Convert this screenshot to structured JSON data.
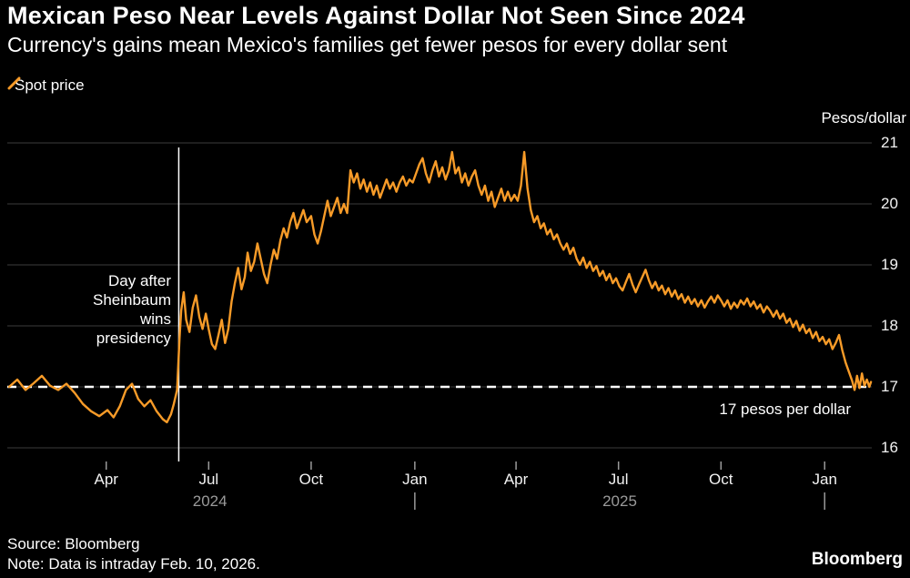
{
  "header": {
    "title": "Mexican Peso Near Levels Against Dollar Not Seen Since 2024",
    "subtitle": "Currency's gains mean Mexico's families get fewer pesos for every dollar sent"
  },
  "legend": {
    "label": "Spot price"
  },
  "axis": {
    "unit_label": "Pesos/dollar",
    "y_ticks": [
      21,
      20,
      19,
      18,
      17,
      16
    ],
    "x_ticks": [
      {
        "label": "Apr",
        "t": 2024.247
      },
      {
        "label": "Jul",
        "t": 2024.497
      },
      {
        "label": "Oct",
        "t": 2024.747
      },
      {
        "label": "Jan",
        "t": 2025.0
      },
      {
        "label": "Apr",
        "t": 2025.247
      },
      {
        "label": "Jul",
        "t": 2025.497
      },
      {
        "label": "Oct",
        "t": 2025.747
      },
      {
        "label": "Jan",
        "t": 2026.0
      }
    ],
    "year_labels": [
      {
        "label": "2024",
        "t": 2024.5
      },
      {
        "label": "2025",
        "t": 2025.5
      }
    ],
    "year_dividers": [
      2025.0,
      2026.0
    ]
  },
  "annotations": {
    "election": {
      "lines": [
        "Day after",
        "Sheinbaum",
        "wins",
        "presidency"
      ],
      "t": 2024.424
    },
    "threshold": {
      "label": "17 pesos per dollar",
      "value": 17
    }
  },
  "footer": {
    "source": "Source: Bloomberg",
    "note": "Note: Data is intraday Feb. 10, 2026.",
    "brand": "Bloomberg"
  },
  "colors": {
    "line": "#F79B28",
    "grid": "#3d3d3d",
    "threshold": "#ffffff",
    "event_line": "#ffffff",
    "background": "#000000"
  },
  "chart_data": {
    "type": "line",
    "title": "Mexican Peso Near Levels Against Dollar Not Seen Since 2024",
    "xlabel": "",
    "ylabel": "Pesos/dollar",
    "x_range": [
      2024.01,
      2026.115
    ],
    "ylim": [
      15.8,
      21.2
    ],
    "grid": "horizontal",
    "legend_position": "top-left",
    "series": [
      {
        "name": "Spot price",
        "color": "#F79B28",
        "points": [
          [
            2024.01,
            17.0
          ],
          [
            2024.03,
            17.12
          ],
          [
            2024.05,
            16.95
          ],
          [
            2024.07,
            17.06
          ],
          [
            2024.09,
            17.18
          ],
          [
            2024.11,
            17.02
          ],
          [
            2024.13,
            16.95
          ],
          [
            2024.15,
            17.05
          ],
          [
            2024.17,
            16.9
          ],
          [
            2024.19,
            16.72
          ],
          [
            2024.21,
            16.6
          ],
          [
            2024.23,
            16.52
          ],
          [
            2024.25,
            16.62
          ],
          [
            2024.265,
            16.5
          ],
          [
            2024.28,
            16.68
          ],
          [
            2024.295,
            16.95
          ],
          [
            2024.31,
            17.05
          ],
          [
            2024.325,
            16.8
          ],
          [
            2024.34,
            16.68
          ],
          [
            2024.355,
            16.78
          ],
          [
            2024.37,
            16.6
          ],
          [
            2024.385,
            16.47
          ],
          [
            2024.395,
            16.42
          ],
          [
            2024.405,
            16.55
          ],
          [
            2024.412,
            16.72
          ],
          [
            2024.42,
            16.95
          ],
          [
            2024.426,
            17.8
          ],
          [
            2024.43,
            18.25
          ],
          [
            2024.436,
            18.55
          ],
          [
            2024.442,
            18.1
          ],
          [
            2024.45,
            17.9
          ],
          [
            2024.458,
            18.3
          ],
          [
            2024.466,
            18.5
          ],
          [
            2024.474,
            18.15
          ],
          [
            2024.482,
            17.95
          ],
          [
            2024.49,
            18.2
          ],
          [
            2024.497,
            17.95
          ],
          [
            2024.505,
            17.7
          ],
          [
            2024.513,
            17.62
          ],
          [
            2024.521,
            17.85
          ],
          [
            2024.529,
            18.1
          ],
          [
            2024.537,
            17.72
          ],
          [
            2024.545,
            17.95
          ],
          [
            2024.553,
            18.4
          ],
          [
            2024.561,
            18.7
          ],
          [
            2024.569,
            18.95
          ],
          [
            2024.577,
            18.6
          ],
          [
            2024.585,
            18.8
          ],
          [
            2024.592,
            19.2
          ],
          [
            2024.6,
            18.9
          ],
          [
            2024.608,
            19.05
          ],
          [
            2024.616,
            19.35
          ],
          [
            2024.624,
            19.1
          ],
          [
            2024.632,
            18.85
          ],
          [
            2024.64,
            18.7
          ],
          [
            2024.648,
            19.0
          ],
          [
            2024.656,
            19.25
          ],
          [
            2024.664,
            19.1
          ],
          [
            2024.672,
            19.4
          ],
          [
            2024.68,
            19.6
          ],
          [
            2024.688,
            19.45
          ],
          [
            2024.696,
            19.7
          ],
          [
            2024.704,
            19.85
          ],
          [
            2024.712,
            19.6
          ],
          [
            2024.72,
            19.75
          ],
          [
            2024.728,
            19.9
          ],
          [
            2024.736,
            19.7
          ],
          [
            2024.747,
            19.8
          ],
          [
            2024.755,
            19.5
          ],
          [
            2024.763,
            19.35
          ],
          [
            2024.771,
            19.55
          ],
          [
            2024.779,
            19.8
          ],
          [
            2024.787,
            20.05
          ],
          [
            2024.795,
            19.8
          ],
          [
            2024.803,
            19.95
          ],
          [
            2024.811,
            20.1
          ],
          [
            2024.819,
            19.85
          ],
          [
            2024.827,
            20.0
          ],
          [
            2024.835,
            19.85
          ],
          [
            2024.843,
            20.55
          ],
          [
            2024.851,
            20.35
          ],
          [
            2024.859,
            20.5
          ],
          [
            2024.867,
            20.25
          ],
          [
            2024.875,
            20.4
          ],
          [
            2024.883,
            20.2
          ],
          [
            2024.891,
            20.35
          ],
          [
            2024.899,
            20.15
          ],
          [
            2024.907,
            20.3
          ],
          [
            2024.915,
            20.1
          ],
          [
            2024.923,
            20.25
          ],
          [
            2024.931,
            20.4
          ],
          [
            2024.939,
            20.25
          ],
          [
            2024.947,
            20.35
          ],
          [
            2024.955,
            20.2
          ],
          [
            2024.963,
            20.35
          ],
          [
            2024.971,
            20.45
          ],
          [
            2024.979,
            20.3
          ],
          [
            2024.987,
            20.4
          ],
          [
            2024.995,
            20.35
          ],
          [
            2025.003,
            20.5
          ],
          [
            2025.011,
            20.65
          ],
          [
            2025.019,
            20.75
          ],
          [
            2025.027,
            20.5
          ],
          [
            2025.035,
            20.35
          ],
          [
            2025.043,
            20.55
          ],
          [
            2025.051,
            20.7
          ],
          [
            2025.059,
            20.45
          ],
          [
            2025.067,
            20.6
          ],
          [
            2025.075,
            20.4
          ],
          [
            2025.083,
            20.55
          ],
          [
            2025.091,
            20.85
          ],
          [
            2025.099,
            20.5
          ],
          [
            2025.107,
            20.6
          ],
          [
            2025.115,
            20.35
          ],
          [
            2025.123,
            20.5
          ],
          [
            2025.131,
            20.3
          ],
          [
            2025.139,
            20.45
          ],
          [
            2025.147,
            20.55
          ],
          [
            2025.155,
            20.3
          ],
          [
            2025.163,
            20.15
          ],
          [
            2025.171,
            20.3
          ],
          [
            2025.179,
            20.05
          ],
          [
            2025.187,
            20.2
          ],
          [
            2025.195,
            19.95
          ],
          [
            2025.203,
            20.1
          ],
          [
            2025.211,
            20.25
          ],
          [
            2025.219,
            20.05
          ],
          [
            2025.227,
            20.2
          ],
          [
            2025.235,
            20.05
          ],
          [
            2025.243,
            20.15
          ],
          [
            2025.251,
            20.05
          ],
          [
            2025.259,
            20.3
          ],
          [
            2025.267,
            20.85
          ],
          [
            2025.275,
            20.25
          ],
          [
            2025.283,
            19.9
          ],
          [
            2025.291,
            19.7
          ],
          [
            2025.299,
            19.8
          ],
          [
            2025.307,
            19.6
          ],
          [
            2025.315,
            19.68
          ],
          [
            2025.323,
            19.5
          ],
          [
            2025.331,
            19.58
          ],
          [
            2025.339,
            19.42
          ],
          [
            2025.347,
            19.5
          ],
          [
            2025.355,
            19.35
          ],
          [
            2025.363,
            19.25
          ],
          [
            2025.371,
            19.35
          ],
          [
            2025.379,
            19.18
          ],
          [
            2025.387,
            19.28
          ],
          [
            2025.395,
            19.1
          ],
          [
            2025.403,
            19.0
          ],
          [
            2025.411,
            19.12
          ],
          [
            2025.419,
            18.95
          ],
          [
            2025.427,
            19.05
          ],
          [
            2025.435,
            18.9
          ],
          [
            2025.443,
            18.98
          ],
          [
            2025.451,
            18.82
          ],
          [
            2025.459,
            18.9
          ],
          [
            2025.467,
            18.75
          ],
          [
            2025.475,
            18.85
          ],
          [
            2025.483,
            18.7
          ],
          [
            2025.491,
            18.78
          ],
          [
            2025.499,
            18.65
          ],
          [
            2025.507,
            18.58
          ],
          [
            2025.515,
            18.72
          ],
          [
            2025.523,
            18.85
          ],
          [
            2025.531,
            18.68
          ],
          [
            2025.539,
            18.55
          ],
          [
            2025.547,
            18.68
          ],
          [
            2025.555,
            18.8
          ],
          [
            2025.563,
            18.92
          ],
          [
            2025.571,
            18.75
          ],
          [
            2025.579,
            18.62
          ],
          [
            2025.587,
            18.72
          ],
          [
            2025.595,
            18.58
          ],
          [
            2025.603,
            18.66
          ],
          [
            2025.611,
            18.52
          ],
          [
            2025.619,
            18.62
          ],
          [
            2025.627,
            18.48
          ],
          [
            2025.635,
            18.58
          ],
          [
            2025.643,
            18.44
          ],
          [
            2025.651,
            18.52
          ],
          [
            2025.659,
            18.38
          ],
          [
            2025.667,
            18.48
          ],
          [
            2025.675,
            18.36
          ],
          [
            2025.683,
            18.44
          ],
          [
            2025.691,
            18.32
          ],
          [
            2025.699,
            18.42
          ],
          [
            2025.707,
            18.3
          ],
          [
            2025.715,
            18.4
          ],
          [
            2025.723,
            18.48
          ],
          [
            2025.731,
            18.38
          ],
          [
            2025.739,
            18.5
          ],
          [
            2025.747,
            18.42
          ],
          [
            2025.755,
            18.32
          ],
          [
            2025.763,
            18.42
          ],
          [
            2025.771,
            18.28
          ],
          [
            2025.779,
            18.38
          ],
          [
            2025.787,
            18.3
          ],
          [
            2025.795,
            18.42
          ],
          [
            2025.803,
            18.35
          ],
          [
            2025.811,
            18.45
          ],
          [
            2025.819,
            18.32
          ],
          [
            2025.827,
            18.4
          ],
          [
            2025.835,
            18.28
          ],
          [
            2025.843,
            18.35
          ],
          [
            2025.851,
            18.22
          ],
          [
            2025.859,
            18.32
          ],
          [
            2025.867,
            18.25
          ],
          [
            2025.875,
            18.15
          ],
          [
            2025.883,
            18.25
          ],
          [
            2025.891,
            18.12
          ],
          [
            2025.899,
            18.2
          ],
          [
            2025.907,
            18.05
          ],
          [
            2025.915,
            18.12
          ],
          [
            2025.923,
            17.98
          ],
          [
            2025.931,
            18.08
          ],
          [
            2025.939,
            17.92
          ],
          [
            2025.947,
            18.02
          ],
          [
            2025.955,
            17.88
          ],
          [
            2025.963,
            17.95
          ],
          [
            2025.971,
            17.8
          ],
          [
            2025.979,
            17.9
          ],
          [
            2025.987,
            17.75
          ],
          [
            2025.995,
            17.82
          ],
          [
            2026.003,
            17.7
          ],
          [
            2026.011,
            17.78
          ],
          [
            2026.019,
            17.62
          ],
          [
            2026.027,
            17.72
          ],
          [
            2026.035,
            17.85
          ],
          [
            2026.043,
            17.6
          ],
          [
            2026.051,
            17.4
          ],
          [
            2026.059,
            17.25
          ],
          [
            2026.067,
            17.1
          ],
          [
            2026.073,
            16.95
          ],
          [
            2026.079,
            17.18
          ],
          [
            2026.085,
            16.98
          ],
          [
            2026.091,
            17.22
          ],
          [
            2026.097,
            17.02
          ],
          [
            2026.103,
            17.12
          ],
          [
            2026.109,
            17.0
          ],
          [
            2026.113,
            17.08
          ]
        ]
      }
    ],
    "annotations": [
      {
        "type": "vline",
        "t": 2024.424,
        "text": "Day after Sheinbaum wins presidency"
      },
      {
        "type": "hline-dashed",
        "value": 17,
        "text": "17 pesos per dollar"
      }
    ]
  }
}
